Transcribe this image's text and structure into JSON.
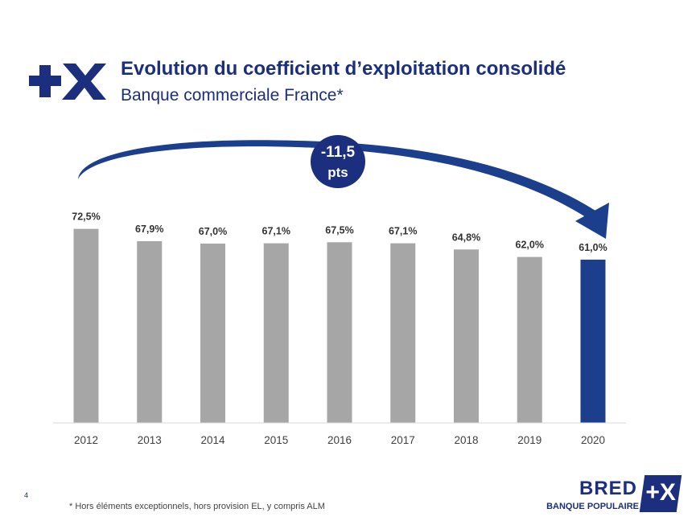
{
  "header": {
    "title": "Evolution du coefficient d’exploitation consolidé",
    "subtitle": "Banque commerciale France*",
    "brand_mark": "+X"
  },
  "chart_data": {
    "type": "bar",
    "categories": [
      "2012",
      "2013",
      "2014",
      "2015",
      "2016",
      "2017",
      "2018",
      "2019",
      "2020"
    ],
    "values": [
      72.5,
      67.9,
      67.0,
      67.1,
      67.5,
      67.1,
      64.8,
      62.0,
      61.0
    ],
    "data_labels": [
      "72,5%",
      "67,9%",
      "67,0%",
      "67,1%",
      "67,5%",
      "67,1%",
      "64,8%",
      "62,0%",
      "61,0%"
    ],
    "bar_colors": [
      "#a6a6a6",
      "#a6a6a6",
      "#a6a6a6",
      "#a6a6a6",
      "#a6a6a6",
      "#a6a6a6",
      "#a6a6a6",
      "#a6a6a6",
      "#1b3f8c"
    ],
    "annotation": {
      "line1": "-11,5",
      "line2": "pts"
    },
    "ylim": [
      0,
      73
    ],
    "grid": false,
    "legend": "none"
  },
  "footer": {
    "page_number": "4",
    "footnote": "* Hors éléments exceptionnels, hors provision EL, y compris ALM",
    "logo_name": "BRED",
    "logo_subtitle": "BANQUE POPULAIRE",
    "logo_mark": "+X"
  },
  "colors": {
    "navy": "#1b2f7e",
    "bar_grey": "#a6a6a6",
    "bar_highlight": "#1b3f8c",
    "arrow": "#1b3f8c"
  }
}
